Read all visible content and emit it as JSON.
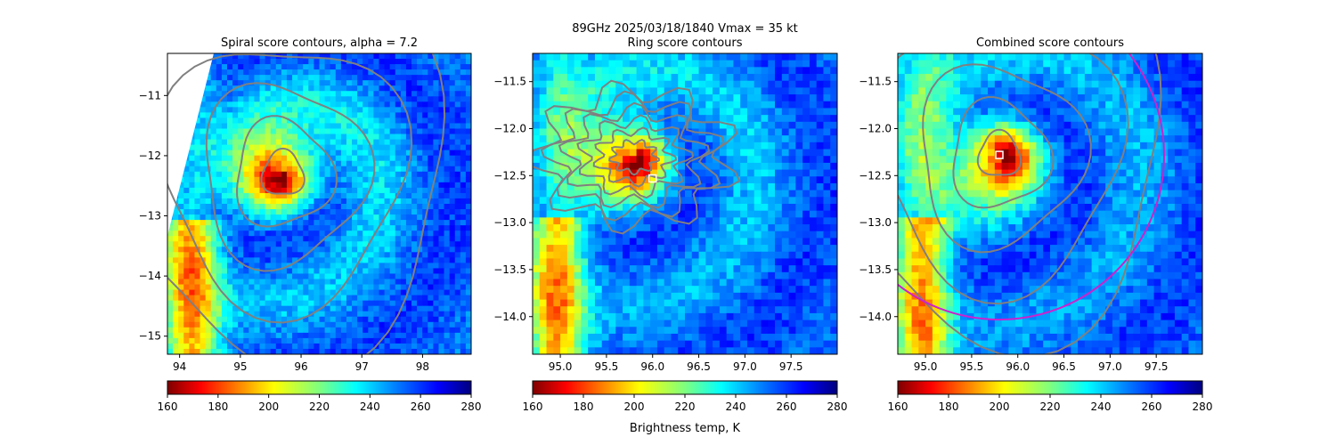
{
  "figure": {
    "suptitle_line1": "89GHz  2025/03/18/1840    Vmax = 35 kt",
    "colorbar_label": "Brightness temp, K",
    "colorbar_ticks": [
      "160",
      "180",
      "200",
      "220",
      "240",
      "260",
      "280"
    ],
    "colorbar_range": [
      160,
      280
    ],
    "colormap_reversed_jet": [
      "#7f0000",
      "#ff0000",
      "#ff7f00",
      "#ffff00",
      "#7fff7f",
      "#00ffff",
      "#0080ff",
      "#0000ff",
      "#00007f"
    ],
    "contour_color": "#808080",
    "ring_color": "#cc22cc"
  },
  "chart_data": [
    {
      "type": "heatmap",
      "title": "Spiral score contours, alpha =  7.2",
      "xlim": [
        93.8,
        98.8
      ],
      "ylim": [
        -15.3,
        -10.3
      ],
      "x_ticks": [
        "94",
        "95",
        "96",
        "97",
        "98"
      ],
      "y_ticks": [
        "−11",
        "−12",
        "−13",
        "−14",
        "−15"
      ],
      "contour_center": [
        95.7,
        -12.3
      ],
      "center_marker": null,
      "xlabel": "",
      "ylabel": ""
    },
    {
      "type": "heatmap",
      "title": "Ring score contours",
      "xlim": [
        94.7,
        98.0
      ],
      "ylim": [
        -14.4,
        -11.2
      ],
      "x_ticks": [
        "95.0",
        "95.5",
        "96.0",
        "96.5",
        "97.0",
        "97.5"
      ],
      "y_ticks": [
        "−11.5",
        "−12.0",
        "−12.5",
        "−13.0",
        "−13.5",
        "−14.0"
      ],
      "contour_center": [
        95.8,
        -12.3
      ],
      "center_marker": [
        96.0,
        -12.53
      ],
      "xlabel": "",
      "ylabel": ""
    },
    {
      "type": "heatmap",
      "title": "Combined score contours",
      "xlim": [
        94.7,
        98.0
      ],
      "ylim": [
        -14.4,
        -11.2
      ],
      "x_ticks": [
        "95.0",
        "95.5",
        "96.0",
        "96.5",
        "97.0",
        "97.5"
      ],
      "y_ticks": [
        "−11.5",
        "−12.0",
        "−12.5",
        "−13.0",
        "−13.5",
        "−14.0"
      ],
      "contour_center": [
        95.8,
        -12.28
      ],
      "center_marker": [
        95.8,
        -12.28
      ],
      "xlabel": "",
      "ylabel": ""
    }
  ]
}
